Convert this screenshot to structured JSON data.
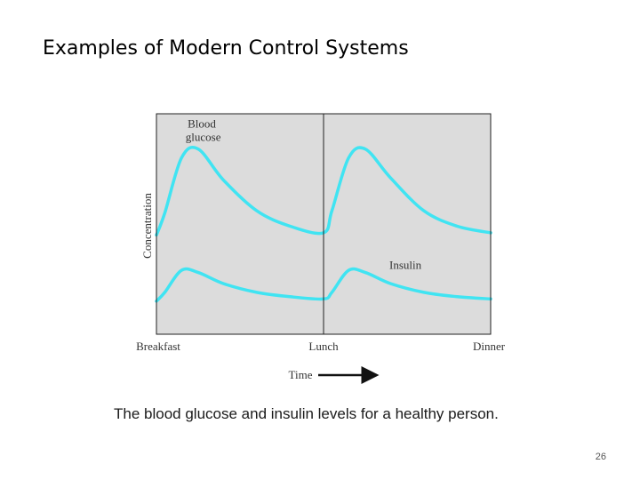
{
  "slide": {
    "title": "Examples of Modern Control Systems",
    "page_number": "26"
  },
  "chart_data": {
    "type": "line",
    "title": "",
    "xlabel": "Time",
    "ylabel": "Concentration",
    "caption": "The blood glucose and insulin levels for a healthy person.",
    "x_ticks": [
      "Breakfast",
      "Lunch",
      "Dinner"
    ],
    "x": [
      0,
      0.05,
      0.15,
      0.25,
      0.4,
      0.6,
      0.8,
      1,
      1.05,
      1.15,
      1.25,
      1.4,
      1.6,
      1.8,
      2
    ],
    "xlim": [
      0,
      2
    ],
    "ylim": [
      0,
      10
    ],
    "grid": false,
    "legend": "none",
    "vertical_lines": [
      1
    ],
    "series": [
      {
        "name": "Blood glucose",
        "color": "#40e4f2",
        "values": [
          4.5,
          5.5,
          8.0,
          8.4,
          7.0,
          5.6,
          4.9,
          4.6,
          5.6,
          8.0,
          8.4,
          7.1,
          5.6,
          4.9,
          4.6
        ]
      },
      {
        "name": "Insulin",
        "color": "#40e4f2",
        "values": [
          1.5,
          1.9,
          2.9,
          2.8,
          2.3,
          1.9,
          1.7,
          1.6,
          1.9,
          2.9,
          2.8,
          2.3,
          1.9,
          1.7,
          1.6
        ]
      }
    ],
    "series_labels": [
      {
        "text_line1": "Blood",
        "text_line2": "glucose",
        "series": 0
      },
      {
        "text_line1": "Insulin",
        "text_line2": "",
        "series": 1
      }
    ],
    "colors": {
      "plot_background": "#dcdcdc",
      "axis": "#222222"
    }
  }
}
